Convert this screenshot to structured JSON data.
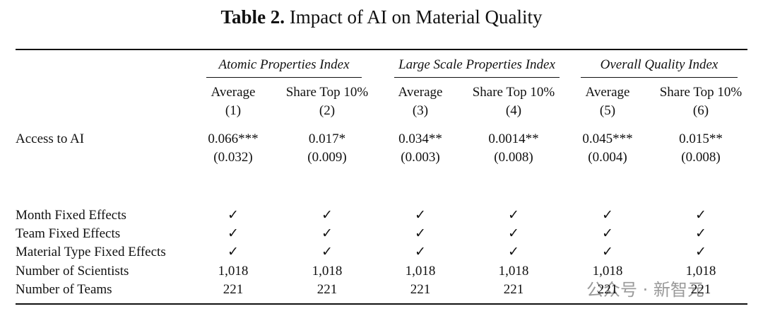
{
  "title": {
    "label": "Table 2.",
    "text": "Impact of AI on Material Quality"
  },
  "table": {
    "groups": [
      "Atomic Properties Index",
      "Large Scale Properties Index",
      "Overall Quality Index"
    ],
    "columns": [
      {
        "name": "Average",
        "number": "(1)"
      },
      {
        "name": "Share Top 10%",
        "number": "(2)"
      },
      {
        "name": "Average",
        "number": "(3)"
      },
      {
        "name": "Share Top 10%",
        "number": "(4)"
      },
      {
        "name": "Average",
        "number": "(5)"
      },
      {
        "name": "Share Top 10%",
        "number": "(6)"
      }
    ],
    "coef_row": {
      "label": "Access to AI",
      "estimates": [
        "0.066***",
        "0.017*",
        "0.034**",
        "0.0014**",
        "0.045***",
        "0.015**"
      ],
      "std_errors": [
        "(0.032)",
        "(0.009)",
        "(0.003)",
        "(0.008)",
        "(0.004)",
        "(0.008)"
      ]
    },
    "rows": [
      {
        "label": "Month Fixed Effects",
        "cells": [
          "✓",
          "✓",
          "✓",
          "✓",
          "✓",
          "✓"
        ]
      },
      {
        "label": "Team Fixed Effects",
        "cells": [
          "✓",
          "✓",
          "✓",
          "✓",
          "✓",
          "✓"
        ]
      },
      {
        "label": "Material Type Fixed Effects",
        "cells": [
          "✓",
          "✓",
          "✓",
          "✓",
          "✓",
          "✓"
        ]
      },
      {
        "label": "Number of Scientists",
        "cells": [
          "1,018",
          "1,018",
          "1,018",
          "1,018",
          "1,018",
          "1,018"
        ]
      },
      {
        "label": "Number of Teams",
        "cells": [
          "221",
          "221",
          "221",
          "221",
          "221",
          "221"
        ]
      }
    ]
  },
  "watermark": "公众号 · 新智元"
}
